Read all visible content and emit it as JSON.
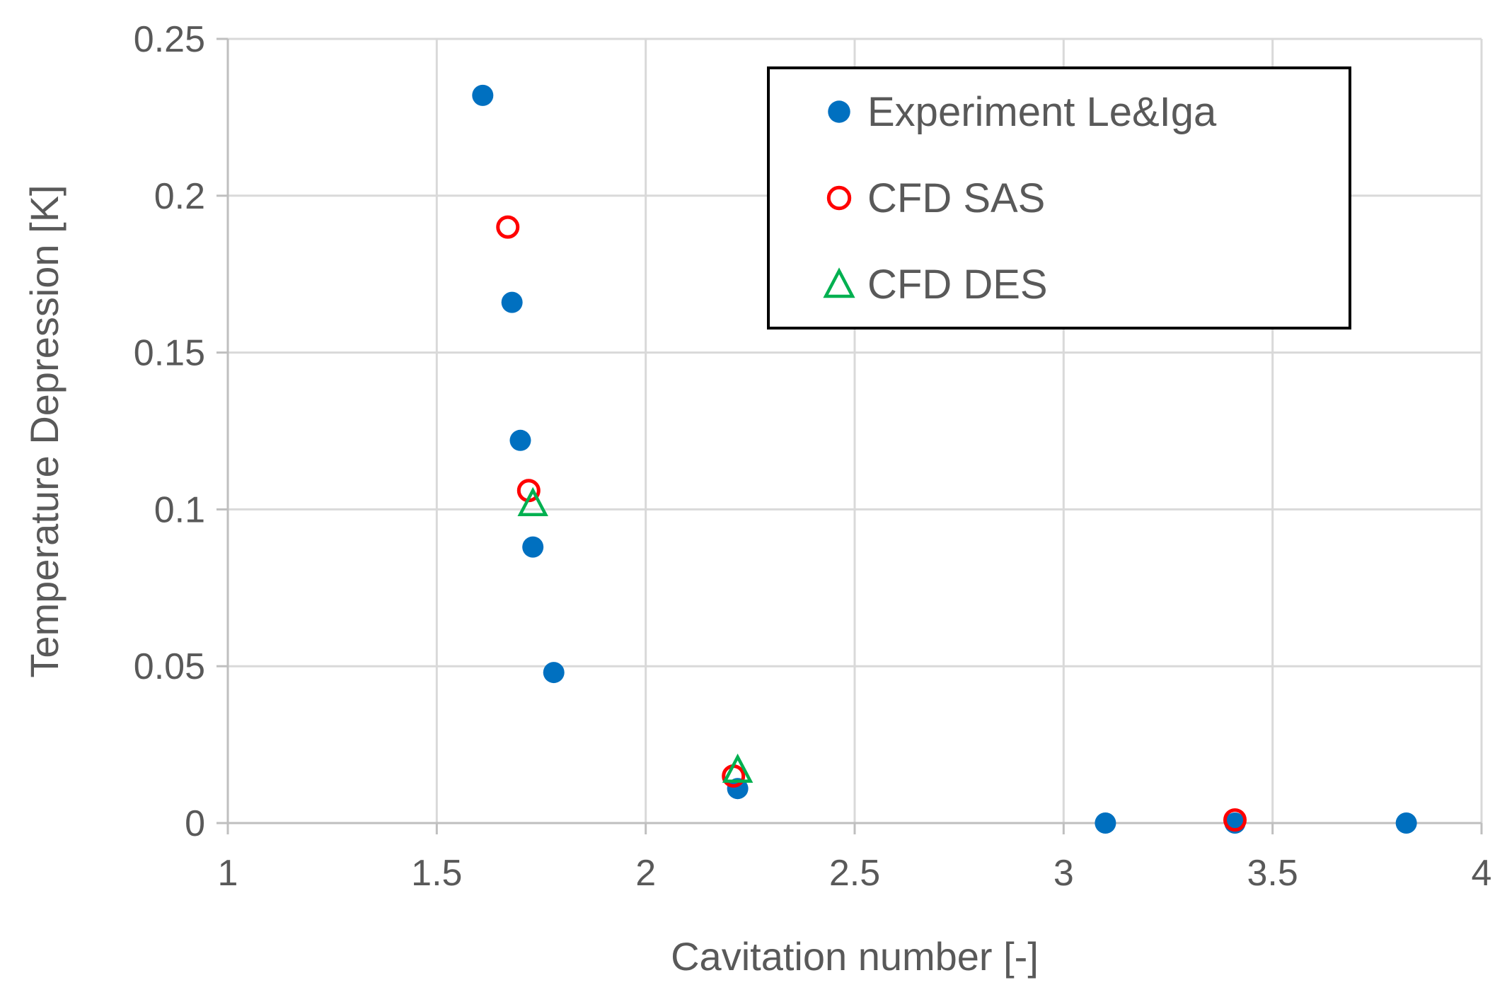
{
  "chart_data": {
    "type": "scatter",
    "title": "",
    "xlabel": "Cavitation number [-]",
    "ylabel": "Temperature Depression [K]",
    "xlim": [
      1,
      4
    ],
    "ylim": [
      0,
      0.25
    ],
    "xticks": [
      1,
      1.5,
      2,
      2.5,
      3,
      3.5,
      4
    ],
    "yticks": [
      0,
      0.05,
      0.1,
      0.15,
      0.2,
      0.25
    ],
    "xtick_labels": [
      "1",
      "1.5",
      "2",
      "2.5",
      "3",
      "3.5",
      "4"
    ],
    "ytick_labels": [
      "0",
      "0.05",
      "0.1",
      "0.15",
      "0.2",
      "0.25"
    ],
    "grid": true,
    "legend_position": "top-right",
    "series": [
      {
        "name": "Experiment Le&Iga",
        "marker": "filled-circle",
        "color": "#0070C0",
        "points": [
          {
            "x": 1.61,
            "y": 0.232
          },
          {
            "x": 1.68,
            "y": 0.166
          },
          {
            "x": 1.7,
            "y": 0.122
          },
          {
            "x": 1.73,
            "y": 0.088
          },
          {
            "x": 1.78,
            "y": 0.048
          },
          {
            "x": 2.22,
            "y": 0.011
          },
          {
            "x": 3.1,
            "y": 0.0
          },
          {
            "x": 3.41,
            "y": 0.0
          },
          {
            "x": 3.82,
            "y": 0.0
          }
        ]
      },
      {
        "name": "CFD SAS",
        "marker": "open-circle",
        "color": "#FF0000",
        "points": [
          {
            "x": 1.67,
            "y": 0.19
          },
          {
            "x": 1.72,
            "y": 0.106
          },
          {
            "x": 2.21,
            "y": 0.015
          },
          {
            "x": 3.41,
            "y": 0.001
          }
        ]
      },
      {
        "name": "CFD DES",
        "marker": "open-triangle",
        "color": "#00B050",
        "points": [
          {
            "x": 1.73,
            "y": 0.102
          },
          {
            "x": 2.22,
            "y": 0.017
          }
        ]
      }
    ]
  }
}
